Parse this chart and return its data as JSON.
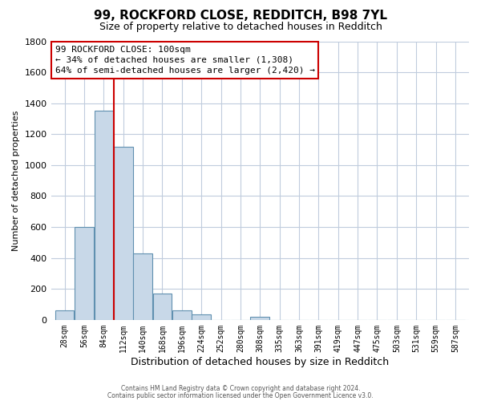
{
  "title1": "99, ROCKFORD CLOSE, REDDITCH, B98 7YL",
  "title2": "Size of property relative to detached houses in Redditch",
  "xlabel": "Distribution of detached houses by size in Redditch",
  "ylabel": "Number of detached properties",
  "bin_labels": [
    "28sqm",
    "56sqm",
    "84sqm",
    "112sqm",
    "140sqm",
    "168sqm",
    "196sqm",
    "224sqm",
    "252sqm",
    "280sqm",
    "308sqm",
    "335sqm",
    "363sqm",
    "391sqm",
    "419sqm",
    "447sqm",
    "475sqm",
    "503sqm",
    "531sqm",
    "559sqm",
    "587sqm"
  ],
  "bar_heights": [
    60,
    600,
    1350,
    1120,
    430,
    170,
    60,
    35,
    0,
    0,
    20,
    0,
    0,
    0,
    0,
    0,
    0,
    0,
    0,
    0,
    0
  ],
  "bar_color": "#c8d8e8",
  "bar_edge_color": "#6090b0",
  "ylim": [
    0,
    1800
  ],
  "yticks": [
    0,
    200,
    400,
    600,
    800,
    1000,
    1200,
    1400,
    1600,
    1800
  ],
  "vline_color": "#cc0000",
  "annotation_title": "99 ROCKFORD CLOSE: 100sqm",
  "annotation_line1": "← 34% of detached houses are smaller (1,308)",
  "annotation_line2": "64% of semi-detached houses are larger (2,420) →",
  "annotation_box_color": "#ffffff",
  "annotation_box_edge": "#cc0000",
  "footer1": "Contains HM Land Registry data © Crown copyright and database right 2024.",
  "footer2": "Contains public sector information licensed under the Open Government Licence v3.0.",
  "background_color": "#ffffff",
  "grid_color": "#c0ccdd",
  "title1_fontsize": 11,
  "title2_fontsize": 9,
  "ylabel_fontsize": 8,
  "xlabel_fontsize": 9,
  "tick_fontsize": 7,
  "ytick_fontsize": 8,
  "footer_fontsize": 5.5,
  "annotation_fontsize": 8
}
